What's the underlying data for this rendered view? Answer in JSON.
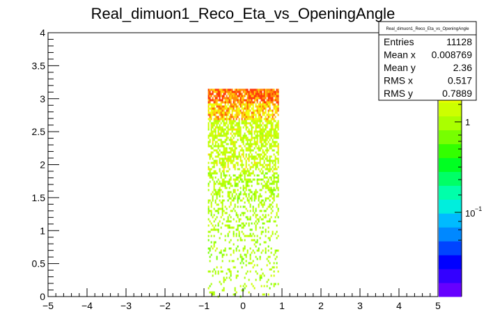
{
  "chart_data": {
    "type": "heatmap",
    "title": "Real_dimuon1_Reco_Eta_vs_OpeningAngle",
    "xlim": [
      -5,
      5
    ],
    "ylim": [
      0,
      4
    ],
    "x_ticks": [
      "-5",
      "-4",
      "-3",
      "-2",
      "-1",
      "0",
      "1",
      "2",
      "3",
      "4",
      "5"
    ],
    "y_ticks": [
      "0",
      "0.5",
      "1",
      "1.5",
      "2",
      "2.5",
      "3",
      "3.5",
      "4"
    ],
    "z_scale": "log",
    "z_tick_labels": [
      "1",
      "10",
      "−1"
    ],
    "occupied_region": {
      "x": [
        -0.9,
        0.9
      ],
      "y": [
        0,
        3.15
      ]
    },
    "color_gradient": "density rises with y: sparse yellow-green at low y, dense green-yellow mid, orange-red near y≈3.1",
    "palette_colors": [
      "#6600ff",
      "#3300ff",
      "#0000ff",
      "#0044ff",
      "#0088ff",
      "#00bbff",
      "#00eedd",
      "#00ffaa",
      "#00ff66",
      "#00ff22",
      "#33ff00",
      "#77ff00",
      "#aaff00",
      "#ccff00",
      "#eeff00",
      "#ffdd00",
      "#ffaa00",
      "#ff6600",
      "#ff2200"
    ],
    "stats": {
      "name": "Real_dimuon1_Reco_Eta_vs_OpeningAngle",
      "rows": [
        {
          "label": "Entries",
          "value": "11128"
        },
        {
          "label": "Mean x",
          "value": "0.008769"
        },
        {
          "label": "Mean y",
          "value": "2.36"
        },
        {
          "label": "RMS x",
          "value": "0.517"
        },
        {
          "label": "RMS y",
          "value": "0.7889"
        }
      ]
    }
  }
}
